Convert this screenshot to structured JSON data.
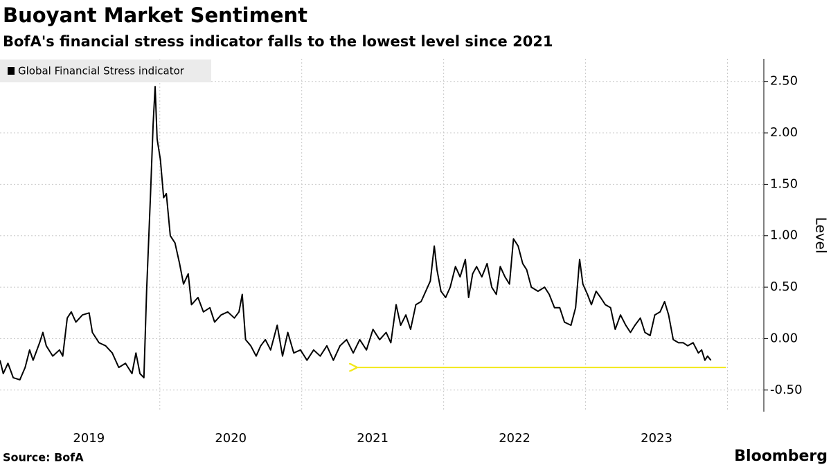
{
  "chart_data": {
    "type": "line",
    "title": "Buoyant Market Sentiment",
    "subtitle": "BofA's financial stress indicator falls to the lowest level since 2021",
    "y_axis_label": "Level",
    "source": "Source:  BofA",
    "logo": "Bloomberg",
    "xlim": [
      2018.874,
      2024.256
    ],
    "xticks": [
      {
        "value": 2019.5,
        "label": "2019"
      },
      {
        "value": 2020.5,
        "label": "2020"
      },
      {
        "value": 2021.5,
        "label": "2021"
      },
      {
        "value": 2022.5,
        "label": "2022"
      },
      {
        "value": 2023.5,
        "label": "2023"
      }
    ],
    "x_gridlines": [
      2020,
      2021,
      2022,
      2023,
      2024
    ],
    "ylim": [
      -0.71,
      2.72
    ],
    "yticks": [
      {
        "value": -0.5,
        "label": "-0.50"
      },
      {
        "value": 0,
        "label": "0.00"
      },
      {
        "value": 0.5,
        "label": "0.50"
      },
      {
        "value": 1,
        "label": "1.00"
      },
      {
        "value": 1.5,
        "label": "1.50"
      },
      {
        "value": 2,
        "label": "2.00"
      },
      {
        "value": 2.5,
        "label": "2.50"
      }
    ],
    "grid": true,
    "legend": "top-left",
    "x": [
      2018.874,
      2018.897,
      2018.93,
      2018.967,
      2019.014,
      2019.051,
      2019.083,
      2019.107,
      2019.153,
      2019.176,
      2019.2,
      2019.246,
      2019.293,
      2019.316,
      2019.348,
      2019.376,
      2019.409,
      2019.455,
      2019.502,
      2019.525,
      2019.572,
      2019.618,
      2019.665,
      2019.711,
      2019.758,
      2019.804,
      2019.832,
      2019.86,
      2019.888,
      2019.907,
      2019.935,
      2019.953,
      2019.967,
      2019.981,
      2020.004,
      2020.027,
      2020.046,
      2020.074,
      2020.107,
      2020.139,
      2020.167,
      2020.2,
      2020.223,
      2020.269,
      2020.307,
      2020.353,
      2020.386,
      2020.432,
      2020.479,
      2020.525,
      2020.558,
      2020.581,
      2020.604,
      2020.641,
      2020.679,
      2020.711,
      2020.744,
      2020.781,
      2020.827,
      2020.865,
      2020.902,
      2020.944,
      2020.991,
      2021.037,
      2021.084,
      2021.13,
      2021.177,
      2021.223,
      2021.27,
      2021.316,
      2021.363,
      2021.409,
      2021.456,
      2021.502,
      2021.549,
      2021.595,
      2021.628,
      2021.665,
      2021.697,
      2021.734,
      2021.767,
      2021.804,
      2021.841,
      2021.874,
      2021.906,
      2021.934,
      2021.953,
      2021.981,
      2022.014,
      2022.046,
      2022.083,
      2022.116,
      2022.153,
      2022.176,
      2022.204,
      2022.232,
      2022.269,
      2022.306,
      2022.339,
      2022.371,
      2022.399,
      2022.432,
      2022.464,
      2022.492,
      2022.525,
      2022.557,
      2022.585,
      2022.618,
      2022.665,
      2022.711,
      2022.744,
      2022.781,
      2022.818,
      2022.851,
      2022.897,
      2022.93,
      2022.958,
      2022.981,
      2023.013,
      2023.041,
      2023.074,
      2023.106,
      2023.139,
      2023.176,
      2023.209,
      2023.246,
      2023.283,
      2023.316,
      2023.348,
      2023.386,
      2023.418,
      2023.455,
      2023.488,
      2023.525,
      2023.557,
      2023.585,
      2023.618,
      2023.655,
      2023.688,
      2023.72,
      2023.758,
      2023.795,
      2023.818,
      2023.841,
      2023.86,
      2023.883
    ],
    "series": [
      {
        "name": "Global Financial Stress indicator",
        "color": "#000000",
        "values": [
          -0.21,
          -0.34,
          -0.24,
          -0.38,
          -0.4,
          -0.28,
          -0.11,
          -0.21,
          -0.04,
          0.06,
          -0.07,
          -0.17,
          -0.11,
          -0.17,
          0.2,
          0.26,
          0.16,
          0.23,
          0.25,
          0.06,
          -0.04,
          -0.07,
          -0.14,
          -0.28,
          -0.24,
          -0.34,
          -0.14,
          -0.34,
          -0.38,
          0.46,
          1.41,
          2.08,
          2.45,
          1.94,
          1.74,
          1.37,
          1.41,
          1.0,
          0.93,
          0.73,
          0.53,
          0.63,
          0.33,
          0.4,
          0.26,
          0.3,
          0.16,
          0.23,
          0.26,
          0.2,
          0.26,
          0.43,
          -0.01,
          -0.07,
          -0.17,
          -0.07,
          -0.01,
          -0.11,
          0.13,
          -0.17,
          0.06,
          -0.14,
          -0.11,
          -0.21,
          -0.11,
          -0.17,
          -0.07,
          -0.21,
          -0.07,
          -0.01,
          -0.14,
          -0.01,
          -0.11,
          0.09,
          -0.01,
          0.06,
          -0.04,
          0.33,
          0.13,
          0.23,
          0.09,
          0.33,
          0.36,
          0.46,
          0.56,
          0.9,
          0.67,
          0.46,
          0.4,
          0.5,
          0.7,
          0.6,
          0.77,
          0.4,
          0.63,
          0.7,
          0.6,
          0.73,
          0.5,
          0.43,
          0.7,
          0.6,
          0.53,
          0.97,
          0.9,
          0.73,
          0.67,
          0.5,
          0.46,
          0.5,
          0.43,
          0.3,
          0.3,
          0.16,
          0.13,
          0.3,
          0.77,
          0.53,
          0.43,
          0.33,
          0.46,
          0.4,
          0.33,
          0.3,
          0.09,
          0.23,
          0.13,
          0.06,
          0.13,
          0.2,
          0.06,
          0.03,
          0.23,
          0.26,
          0.36,
          0.23,
          -0.01,
          -0.04,
          -0.04,
          -0.07,
          -0.04,
          -0.14,
          -0.11,
          -0.21,
          -0.17,
          -0.21
        ]
      }
    ],
    "annotation_arrow": {
      "x": [
        2023.99,
        2021.38
      ],
      "y": -0.28,
      "color": "#f2e81a"
    }
  }
}
